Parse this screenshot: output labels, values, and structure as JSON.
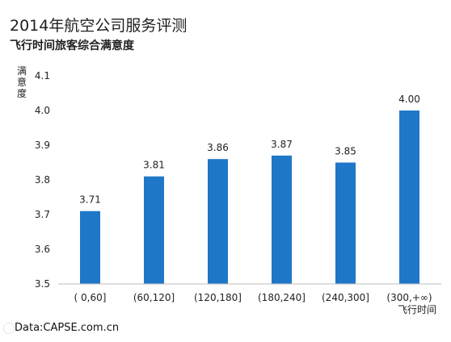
{
  "header": {
    "title": "2014年航空公司服务评测",
    "subtitle": "飞行时间旅客综合满意度"
  },
  "footer": {
    "source": "Data:CAPSE.com.cn"
  },
  "chart_data": {
    "type": "bar",
    "title": "2014年航空公司服务评测",
    "subtitle": "飞行时间旅客综合满意度",
    "categories": [
      "( 0,60]",
      "(60,120]",
      "(120,180]",
      "(180,240]",
      "(240,300]",
      "(300,+∞)"
    ],
    "values": [
      3.71,
      3.81,
      3.86,
      3.87,
      3.85,
      4.0
    ],
    "value_labels": [
      "3.71",
      "3.81",
      "3.86",
      "3.87",
      "3.85",
      "4.00"
    ],
    "xlabel": "飞行时间",
    "ylabel": "满意度",
    "ylim": [
      3.5,
      4.1
    ],
    "yticks": [
      "3.5",
      "3.6",
      "3.7",
      "3.8",
      "3.9",
      "4.0",
      "4.1"
    ],
    "grid": false,
    "legend": "none",
    "colors": {
      "bar": "#1f77c8",
      "axis": "#bdbdbd",
      "text": "#222222"
    }
  }
}
